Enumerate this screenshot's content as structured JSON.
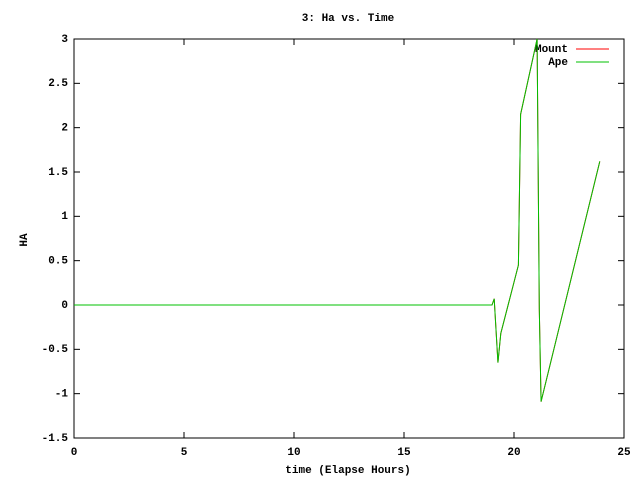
{
  "chart_data": {
    "type": "line",
    "title": "3: Ha vs. Time",
    "x_label": "time (Elapse Hours)",
    "y_label": "HA",
    "x": [
      0,
      19.0,
      19.1,
      19.27,
      19.4,
      20.2,
      20.3,
      21.05,
      21.15,
      21.23,
      23.9
    ],
    "series": [
      {
        "name": "Mount",
        "color": "#ff0000",
        "values": [
          0,
          0,
          0.07,
          -0.65,
          -0.32,
          0.45,
          2.15,
          3.0,
          -0.05,
          -1.09,
          1.62
        ]
      },
      {
        "name": "Ape",
        "color": "#00c000",
        "values": [
          0,
          0,
          0.07,
          -0.65,
          -0.32,
          0.45,
          2.15,
          3.0,
          -0.05,
          -1.09,
          1.62
        ]
      }
    ],
    "xlim": [
      0,
      25
    ],
    "xticks": [
      0,
      5,
      10,
      15,
      20,
      25
    ],
    "ylim": [
      -1.5,
      3
    ],
    "yticks": [
      -1.5,
      -1,
      -0.5,
      0,
      0.5,
      1,
      1.5,
      2,
      2.5,
      3
    ],
    "grid": false,
    "legend": "top-right"
  }
}
